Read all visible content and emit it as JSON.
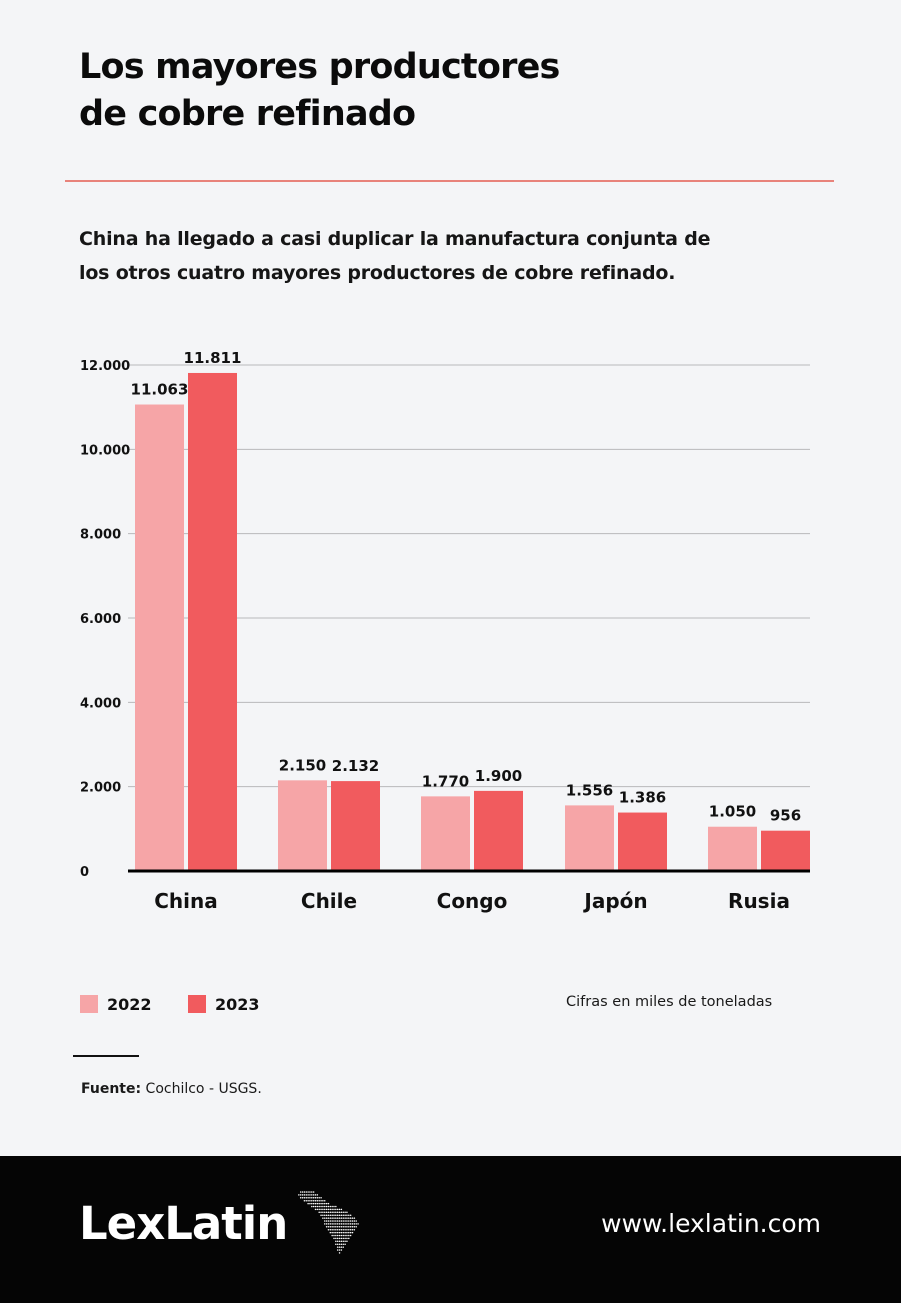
{
  "header": {
    "title_line1": "Los mayores productores",
    "title_line2": "de cobre refinado"
  },
  "subtitle_line1": "China ha llegado a casi duplicar la manufactura conjunta de",
  "subtitle_line2": "los otros cuatro mayores productores de cobre refinado.",
  "colors": {
    "series_2022": "#f6a5a7",
    "series_2023": "#f15b5e",
    "accent_rule": "#e8837b"
  },
  "chart_data": {
    "type": "bar",
    "categories": [
      "China",
      "Chile",
      "Congo",
      "Japón",
      "Rusia"
    ],
    "series": [
      {
        "name": "2022",
        "values": [
          11063,
          2150,
          1770,
          1556,
          1050
        ],
        "labels": [
          "11.063",
          "2.150",
          "1.770",
          "1.556",
          "1.050"
        ]
      },
      {
        "name": "2023",
        "values": [
          11811,
          2132,
          1900,
          1386,
          956
        ],
        "labels": [
          "11.811",
          "2.132",
          "1.900",
          "1.386",
          "956"
        ]
      }
    ],
    "ylim": [
      0,
      12000
    ],
    "yticks": [
      0,
      2000,
      4000,
      6000,
      8000,
      10000,
      12000
    ],
    "ytick_labels": [
      "0",
      "2.000",
      "4.000",
      "6.000",
      "8.000",
      "10.000",
      "12.000"
    ],
    "grid": true,
    "legend": "bottom-left"
  },
  "units_note": "Cifras en miles de toneladas",
  "source": {
    "label": "Fuente:",
    "text": " Cochilco - USGS."
  },
  "footer": {
    "logo": "LexLatin",
    "logo_icon": "latin-america-map-icon",
    "url": "www.lexlatin.com"
  }
}
